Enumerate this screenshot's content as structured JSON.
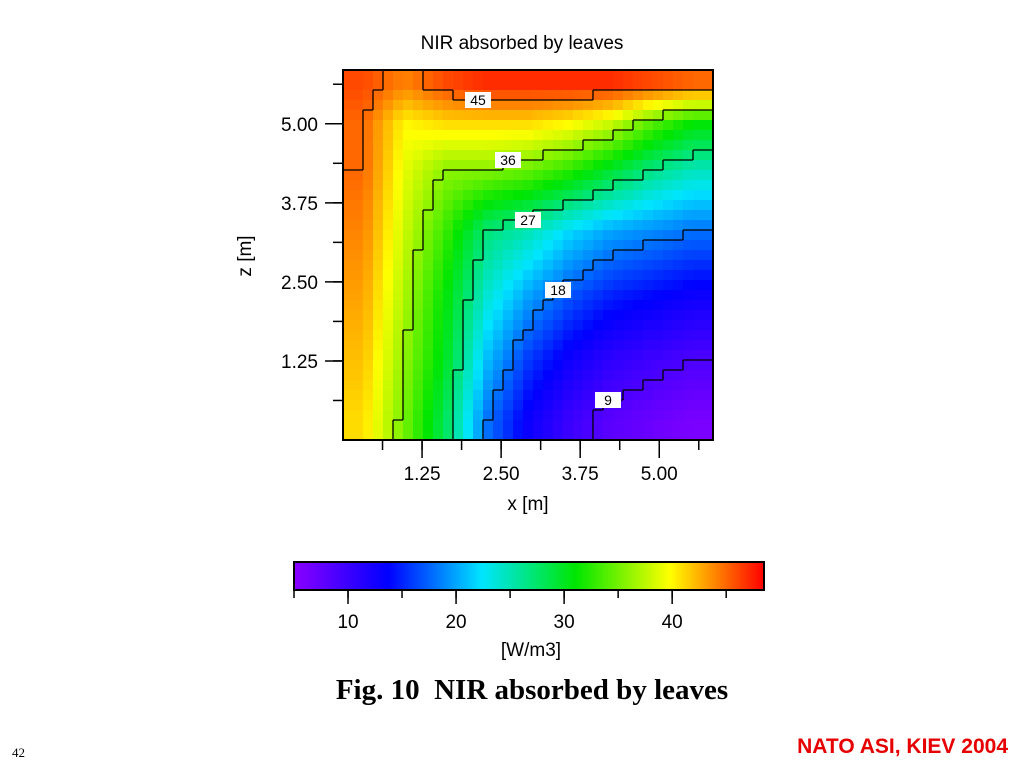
{
  "slide": {
    "caption": "Fig. 10  NIR absorbed by leaves",
    "footer": "NATO ASI, KIEV 2004",
    "page_number": "42"
  },
  "chart_data": {
    "type": "heatmap",
    "title": "NIR absorbed by leaves",
    "xlabel": "x [m]",
    "ylabel": "z [m]",
    "xlim": [
      0,
      5.85
    ],
    "ylim": [
      0,
      5.85
    ],
    "x_ticks": [
      1.25,
      2.5,
      3.75,
      5.0
    ],
    "x_tick_labels": [
      "1.25",
      "2.50",
      "3.75",
      "5.00"
    ],
    "y_ticks": [
      1.25,
      2.5,
      3.75,
      5.0
    ],
    "y_tick_labels": [
      "1.25",
      "2.50",
      "3.75",
      "5.00"
    ],
    "grid": false,
    "colorbar": {
      "label": "[W/m3]",
      "range": [
        5,
        48.5
      ],
      "ticks": [
        10,
        20,
        30,
        40
      ],
      "tick_labels": [
        "10",
        "20",
        "30",
        "40"
      ],
      "colors": [
        "#8a00ff",
        "#0000ff",
        "#00e5ff",
        "#00e600",
        "#ffff00",
        "#ff0000"
      ]
    },
    "contours": [
      {
        "level": 45,
        "label": "45"
      },
      {
        "level": 36,
        "label": "36"
      },
      {
        "level": 27,
        "label": "27"
      },
      {
        "level": 18,
        "label": "18"
      },
      {
        "level": 9,
        "label": "9"
      }
    ],
    "values_by_height": [
      {
        "z": 5.6,
        "x_values": [
          46,
          44,
          46,
          47,
          47,
          47,
          47,
          46,
          45
        ]
      },
      {
        "z": 5.0,
        "x_values": [
          45,
          40,
          41,
          41,
          41,
          40,
          38,
          34,
          31
        ]
      },
      {
        "z": 4.3,
        "x_values": [
          45,
          39,
          36,
          36,
          35,
          33,
          30,
          27,
          25
        ]
      },
      {
        "z": 3.3,
        "x_values": [
          44,
          38,
          33,
          27,
          25,
          22,
          20,
          19,
          18
        ]
      },
      {
        "z": 2.3,
        "x_values": [
          43,
          37,
          31,
          24,
          20,
          17,
          15,
          14,
          13
        ]
      },
      {
        "z": 1.3,
        "x_values": [
          42,
          36,
          30,
          21,
          16,
          13,
          11,
          10,
          9
        ]
      },
      {
        "z": 0.3,
        "x_values": [
          41,
          35,
          28,
          18,
          13,
          10,
          8,
          7,
          6
        ]
      }
    ]
  }
}
